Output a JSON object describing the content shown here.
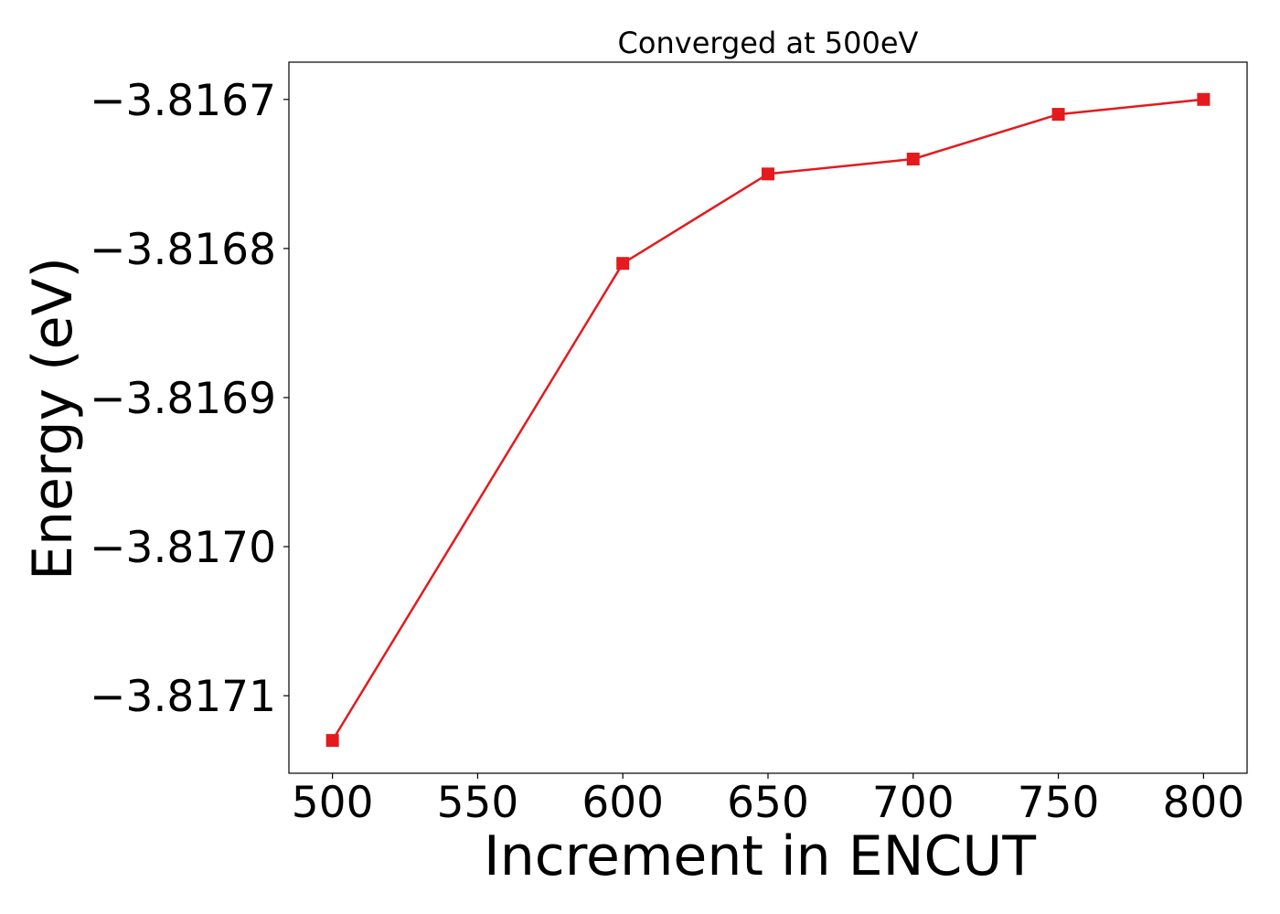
{
  "chart_data": {
    "type": "line",
    "title": "Converged at 500eV",
    "xlabel": "Increment in ENCUT",
    "ylabel": "Energy (eV)",
    "x": [
      500,
      600,
      650,
      700,
      750,
      800
    ],
    "series": [
      {
        "values": [
          -3.81713,
          -3.81681,
          -3.81675,
          -3.81674,
          -3.81671,
          -3.8167
        ],
        "color": "#e41a1c",
        "marker": "square"
      }
    ],
    "xticks": [
      500,
      550,
      600,
      650,
      700,
      750,
      800
    ],
    "xtick_labels": [
      "500",
      "550",
      "600",
      "650",
      "700",
      "750",
      "800"
    ],
    "yticks": [
      -3.8167,
      -3.8168,
      -3.8169,
      -3.817,
      -3.8171
    ],
    "ytick_labels": [
      "−3.8167",
      "−3.8168",
      "−3.8169",
      "−3.8170",
      "−3.8171"
    ],
    "xlim": [
      485,
      815
    ],
    "ylim": [
      -3.817152,
      -3.816675
    ],
    "grid": false,
    "legend": false
  }
}
